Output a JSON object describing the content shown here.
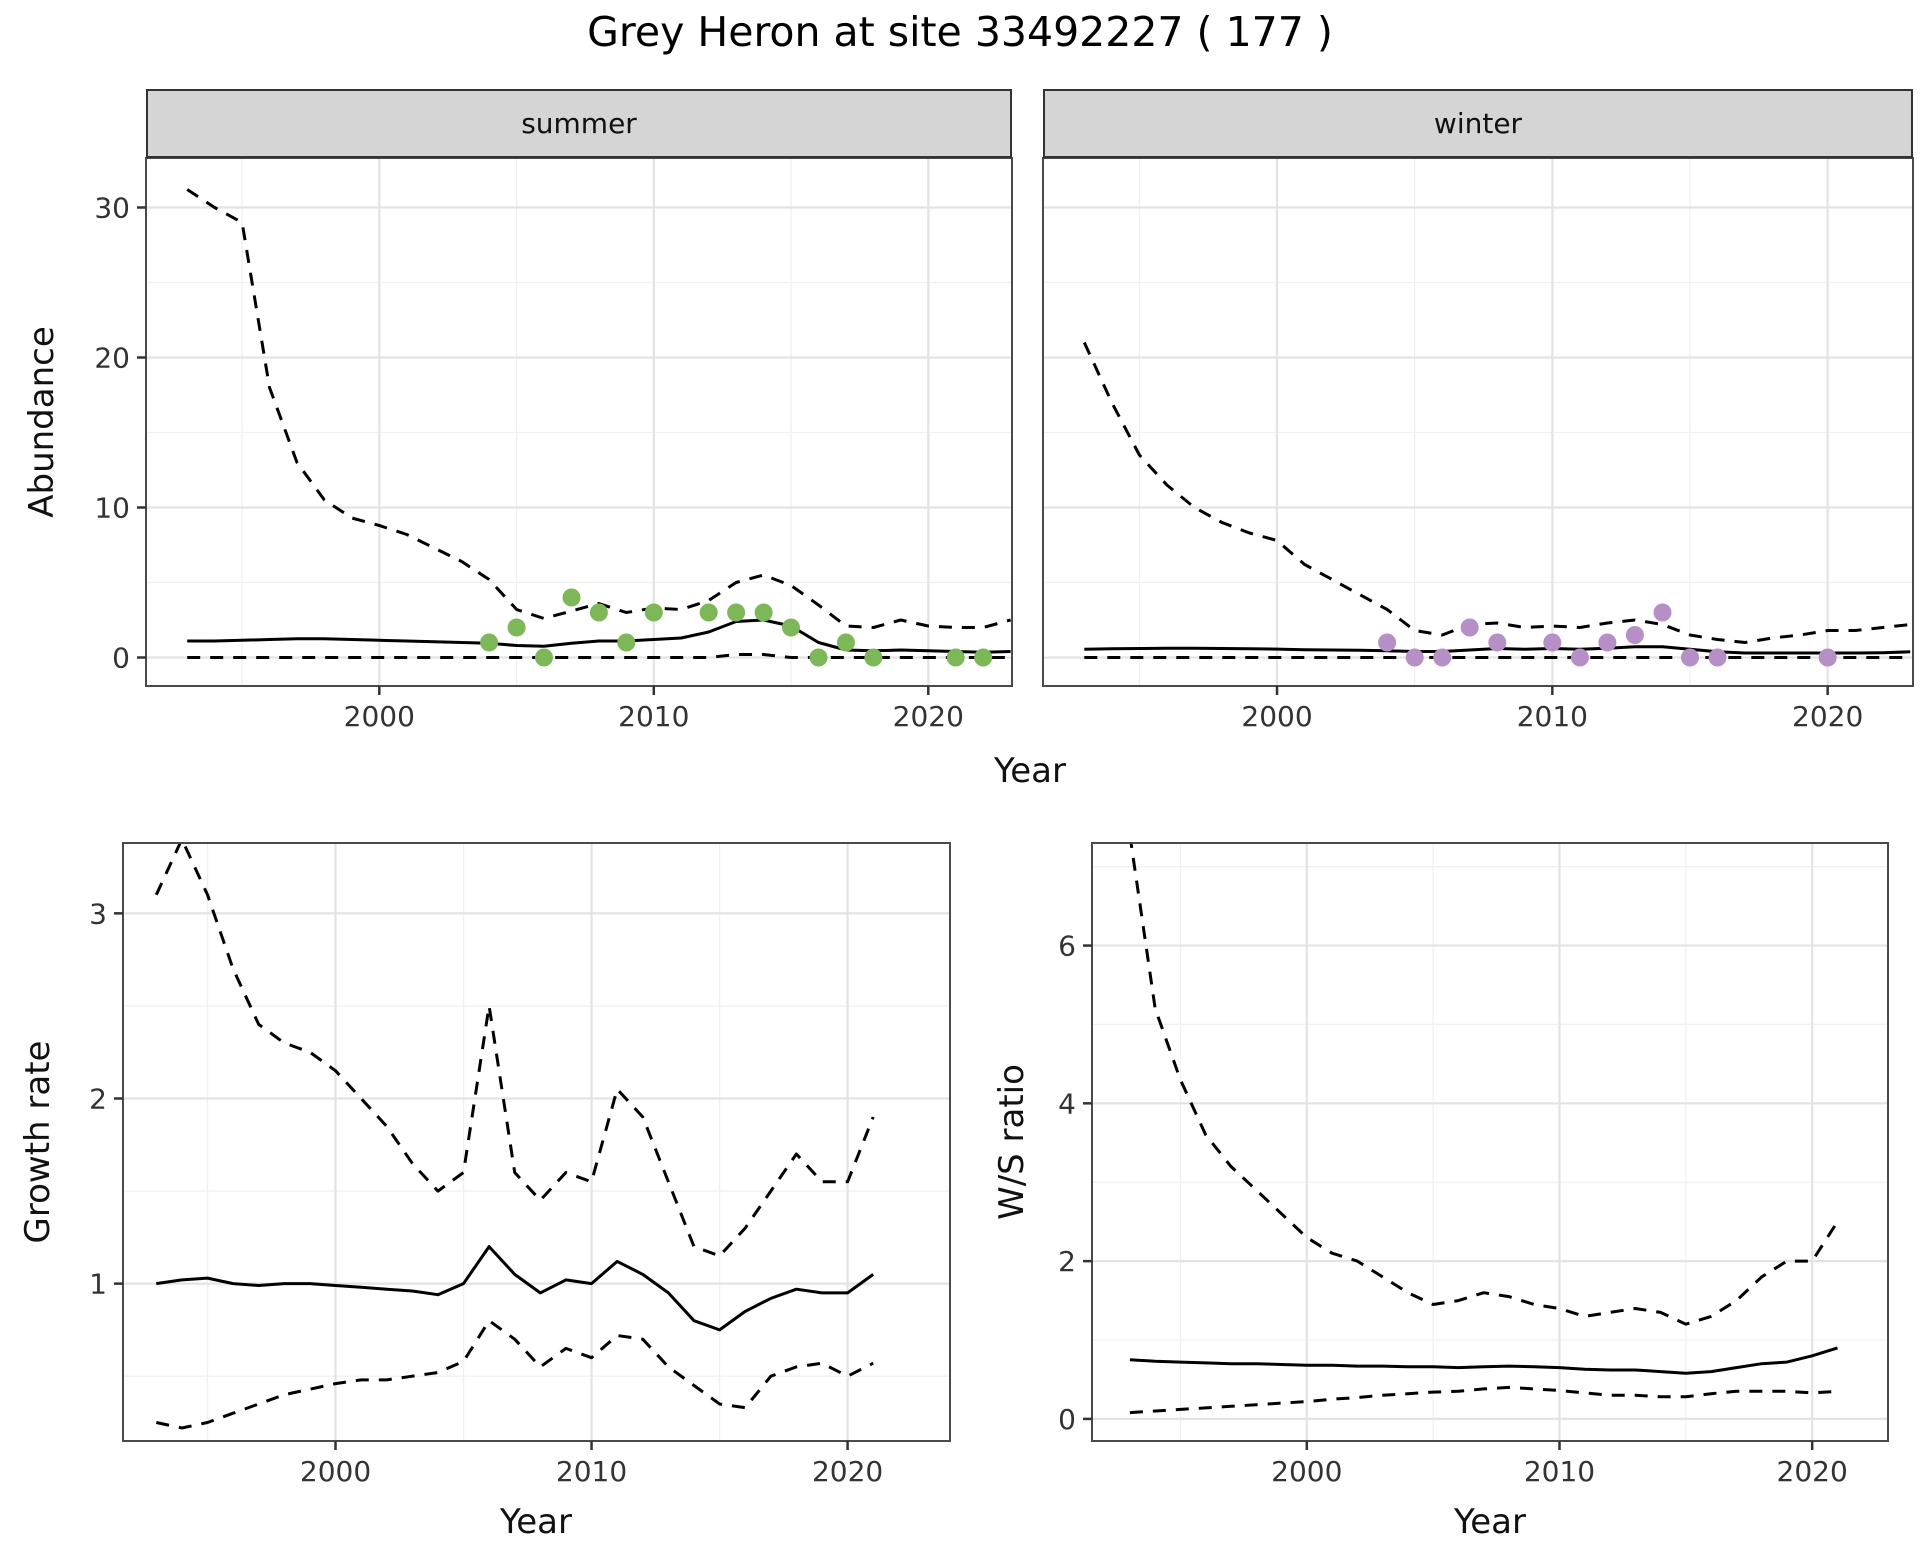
{
  "title": "Grey Heron at site 33492227 ( 177 )",
  "colors": {
    "line": "#000000",
    "summer_point": "#7CB857",
    "winter_point": "#B58FC6",
    "grid_major": "#E3E3E3",
    "grid_minor": "#F0F0F0",
    "panel_border": "#4A4A4A",
    "tick": "#333333",
    "tick_text": "#333333"
  },
  "chart_data": [
    {
      "id": "abundance-summer",
      "type": "line",
      "facet_label": "summer",
      "xlabel": "Year",
      "ylabel": "Abundance",
      "xlim": [
        1991.5,
        2023.05
      ],
      "ylim": [
        -1.9,
        33.3
      ],
      "xticks": [
        2000,
        2010,
        2020
      ],
      "yticks": [
        0,
        10,
        20,
        30
      ],
      "xminor": [
        1995,
        2005,
        2015
      ],
      "yminor": [
        5,
        15,
        25
      ],
      "years": [
        1993,
        1994,
        1995,
        1996,
        1997,
        1998,
        1999,
        2000,
        2001,
        2002,
        2003,
        2004,
        2005,
        2006,
        2007,
        2008,
        2009,
        2010,
        2011,
        2012,
        2013,
        2014,
        2015,
        2016,
        2017,
        2018,
        2019,
        2020,
        2021,
        2022,
        2023
      ],
      "series": [
        {
          "name": "upper-95ci",
          "style": "dashed",
          "values": [
            31.2,
            30,
            29,
            18,
            13,
            10.5,
            9.3,
            8.8,
            8.2,
            7.3,
            6.4,
            5.2,
            3.2,
            2.6,
            3.1,
            3.6,
            3,
            3.3,
            3.2,
            3.8,
            5,
            5.5,
            4.8,
            3.5,
            2.1,
            2,
            2.5,
            2.1,
            2,
            2,
            2.5
          ]
        },
        {
          "name": "median",
          "style": "solid",
          "values": [
            1.1,
            1.1,
            1.15,
            1.2,
            1.25,
            1.25,
            1.2,
            1.15,
            1.1,
            1.05,
            1,
            0.95,
            0.8,
            0.75,
            0.95,
            1.1,
            1.1,
            1.2,
            1.3,
            1.7,
            2.4,
            2.5,
            2.1,
            1,
            0.5,
            0.45,
            0.5,
            0.45,
            0.4,
            0.35,
            0.4
          ]
        },
        {
          "name": "lower-95ci",
          "style": "dashed",
          "values": [
            0,
            0,
            0,
            0,
            0,
            0,
            0,
            0,
            0,
            0,
            0,
            0,
            0,
            0,
            0,
            0,
            0,
            0,
            0,
            0,
            0.2,
            0.2,
            0,
            0,
            0,
            0,
            0,
            0,
            0,
            0,
            0
          ]
        }
      ],
      "points": {
        "name": "observed-counts-summer",
        "color_key": "summer_point",
        "data": [
          [
            2004,
            1
          ],
          [
            2005,
            2
          ],
          [
            2006,
            0
          ],
          [
            2007,
            4
          ],
          [
            2008,
            3
          ],
          [
            2009,
            1
          ],
          [
            2010,
            3
          ],
          [
            2012,
            3
          ],
          [
            2013,
            3
          ],
          [
            2014,
            3
          ],
          [
            2015,
            2
          ],
          [
            2016,
            0
          ],
          [
            2017,
            1
          ],
          [
            2018,
            0
          ],
          [
            2021,
            0
          ],
          [
            2022,
            0
          ]
        ]
      }
    },
    {
      "id": "abundance-winter",
      "type": "line",
      "facet_label": "winter",
      "xlabel": "Year",
      "ylabel": "",
      "xlim": [
        1991.5,
        2023.1
      ],
      "ylim": [
        -1.9,
        33.3
      ],
      "xticks": [
        2000,
        2010,
        2020
      ],
      "yticks": [
        0,
        10,
        20,
        30
      ],
      "xminor": [
        1995,
        2005,
        2015
      ],
      "yminor": [
        5,
        15,
        25
      ],
      "years": [
        1993,
        1994,
        1995,
        1996,
        1997,
        1998,
        1999,
        2000,
        2001,
        2002,
        2003,
        2004,
        2005,
        2006,
        2007,
        2008,
        2009,
        2010,
        2011,
        2012,
        2013,
        2014,
        2015,
        2016,
        2017,
        2018,
        2019,
        2020,
        2021,
        2022,
        2023
      ],
      "series": [
        {
          "name": "upper-95ci",
          "style": "dashed",
          "values": [
            21,
            17,
            13.5,
            11.5,
            10,
            9,
            8.3,
            7.8,
            6.2,
            5.2,
            4.2,
            3.2,
            1.8,
            1.5,
            2.2,
            2.3,
            2,
            2.1,
            2,
            2.3,
            2.5,
            2.2,
            1.5,
            1.2,
            1,
            1.3,
            1.5,
            1.8,
            1.8,
            2,
            2.2
          ]
        },
        {
          "name": "median",
          "style": "solid",
          "values": [
            0.55,
            0.58,
            0.6,
            0.62,
            0.62,
            0.6,
            0.58,
            0.56,
            0.52,
            0.5,
            0.48,
            0.45,
            0.4,
            0.4,
            0.5,
            0.6,
            0.55,
            0.6,
            0.55,
            0.62,
            0.72,
            0.72,
            0.55,
            0.38,
            0.3,
            0.3,
            0.3,
            0.3,
            0.3,
            0.32,
            0.38
          ]
        },
        {
          "name": "lower-95ci",
          "style": "dashed",
          "values": [
            0,
            0,
            0,
            0,
            0,
            0,
            0,
            0,
            0,
            0,
            0,
            0,
            0,
            0,
            0,
            0,
            0,
            0,
            0,
            0,
            0,
            0,
            0,
            0,
            0,
            0,
            0,
            0,
            0,
            0,
            0
          ]
        }
      ],
      "points": {
        "name": "observed-counts-winter",
        "color_key": "winter_point",
        "data": [
          [
            2004,
            1
          ],
          [
            2005,
            0
          ],
          [
            2006,
            0
          ],
          [
            2007,
            2
          ],
          [
            2008,
            1
          ],
          [
            2010,
            1
          ],
          [
            2011,
            0
          ],
          [
            2012,
            1
          ],
          [
            2013,
            1.5
          ],
          [
            2014,
            3
          ],
          [
            2015,
            0
          ],
          [
            2016,
            0
          ],
          [
            2020,
            0
          ]
        ]
      }
    },
    {
      "id": "growth-rate",
      "type": "line",
      "facet_label": null,
      "xlabel": "Year",
      "ylabel": "Growth rate",
      "xlim": [
        1991.7,
        2024.0
      ],
      "ylim": [
        0.15,
        3.38
      ],
      "xticks": [
        2000,
        2010,
        2020
      ],
      "yticks": [
        1,
        2,
        3
      ],
      "xminor": [
        1995,
        2005,
        2015
      ],
      "yminor": [
        0.5,
        1.5,
        2.5
      ],
      "years": [
        1993,
        1994,
        1995,
        1996,
        1997,
        1998,
        1999,
        2000,
        2001,
        2002,
        2003,
        2004,
        2005,
        2006,
        2007,
        2008,
        2009,
        2010,
        2011,
        2012,
        2013,
        2014,
        2015,
        2016,
        2017,
        2018,
        2019,
        2020,
        2021
      ],
      "series": [
        {
          "name": "upper-95ci",
          "style": "dashed",
          "values": [
            3.1,
            3.4,
            3.1,
            2.7,
            2.4,
            2.3,
            2.25,
            2.15,
            2,
            1.85,
            1.65,
            1.5,
            1.6,
            2.5,
            1.6,
            1.45,
            1.6,
            1.55,
            2.05,
            1.9,
            1.55,
            1.2,
            1.15,
            1.3,
            1.5,
            1.7,
            1.55,
            1.55,
            1.9
          ]
        },
        {
          "name": "median",
          "style": "solid",
          "values": [
            1,
            1.02,
            1.03,
            1,
            0.99,
            1,
            1,
            0.99,
            0.98,
            0.97,
            0.96,
            0.94,
            1,
            1.2,
            1.05,
            0.95,
            1.02,
            1,
            1.12,
            1.05,
            0.95,
            0.8,
            0.75,
            0.85,
            0.92,
            0.97,
            0.95,
            0.95,
            1.05
          ]
        },
        {
          "name": "lower-95ci",
          "style": "dashed",
          "values": [
            0.25,
            0.22,
            0.25,
            0.3,
            0.35,
            0.4,
            0.43,
            0.46,
            0.48,
            0.48,
            0.5,
            0.52,
            0.58,
            0.8,
            0.7,
            0.55,
            0.65,
            0.6,
            0.72,
            0.7,
            0.55,
            0.45,
            0.35,
            0.33,
            0.5,
            0.55,
            0.57,
            0.5,
            0.57
          ]
        }
      ]
    },
    {
      "id": "ws-ratio",
      "type": "line",
      "facet_label": null,
      "xlabel": "Year",
      "ylabel": "W/S ratio",
      "xlim": [
        1991.5,
        2023.0
      ],
      "ylim": [
        -0.28,
        7.3
      ],
      "xticks": [
        2000,
        2010,
        2020
      ],
      "yticks": [
        0,
        2,
        4,
        6
      ],
      "xminor": [
        1995,
        2005,
        2015
      ],
      "yminor": [
        1,
        3,
        5,
        7
      ],
      "years": [
        1993,
        1994,
        1995,
        1996,
        1997,
        1998,
        1999,
        2000,
        2001,
        2002,
        2003,
        2004,
        2005,
        2006,
        2007,
        2008,
        2009,
        2010,
        2011,
        2012,
        2013,
        2014,
        2015,
        2016,
        2017,
        2018,
        2019,
        2020,
        2021
      ],
      "series": [
        {
          "name": "upper-95ci",
          "style": "dashed",
          "values": [
            7.4,
            5.2,
            4.3,
            3.6,
            3.2,
            2.9,
            2.6,
            2.3,
            2.1,
            2,
            1.8,
            1.6,
            1.45,
            1.5,
            1.6,
            1.55,
            1.45,
            1.4,
            1.3,
            1.35,
            1.4,
            1.35,
            1.2,
            1.3,
            1.5,
            1.8,
            2,
            2,
            2.5
          ]
        },
        {
          "name": "median",
          "style": "solid",
          "values": [
            0.75,
            0.73,
            0.72,
            0.71,
            0.7,
            0.7,
            0.69,
            0.68,
            0.68,
            0.67,
            0.67,
            0.66,
            0.66,
            0.65,
            0.66,
            0.67,
            0.66,
            0.65,
            0.63,
            0.62,
            0.62,
            0.6,
            0.58,
            0.6,
            0.65,
            0.7,
            0.72,
            0.8,
            0.9
          ]
        },
        {
          "name": "lower-95ci",
          "style": "dashed",
          "values": [
            0.08,
            0.1,
            0.12,
            0.14,
            0.16,
            0.18,
            0.2,
            0.22,
            0.25,
            0.27,
            0.3,
            0.32,
            0.34,
            0.35,
            0.38,
            0.4,
            0.38,
            0.36,
            0.33,
            0.3,
            0.3,
            0.28,
            0.28,
            0.32,
            0.35,
            0.35,
            0.35,
            0.33,
            0.35
          ]
        }
      ]
    }
  ]
}
